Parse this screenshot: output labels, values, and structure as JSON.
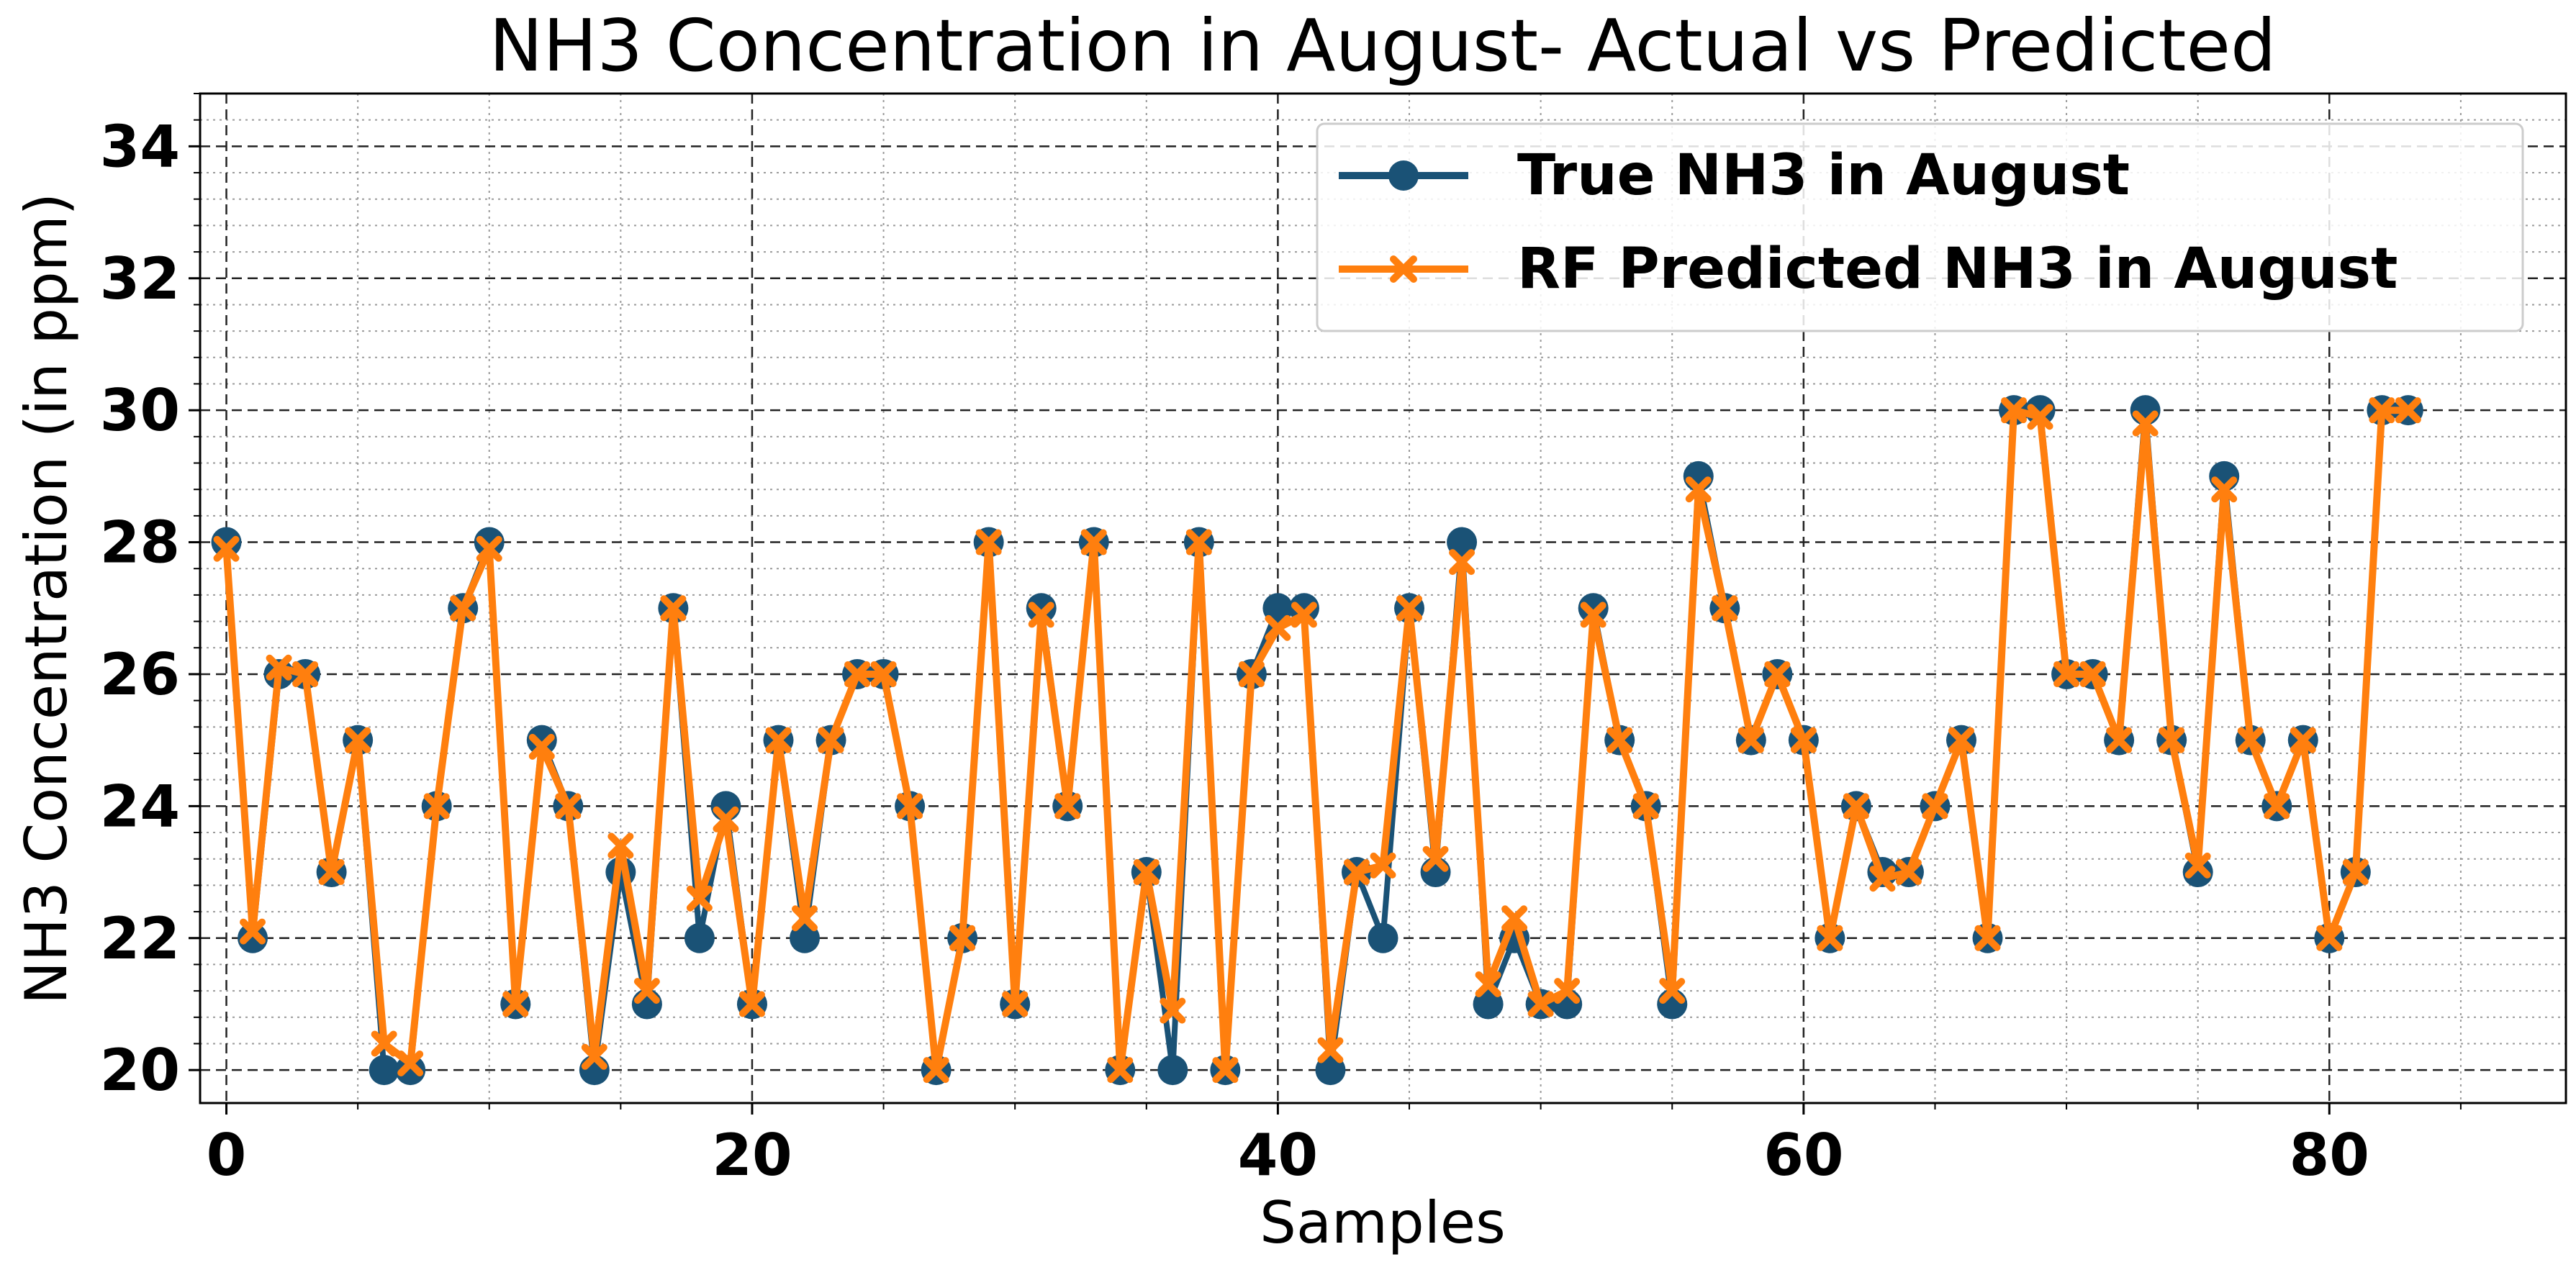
{
  "chart_data": {
    "type": "line",
    "title": "NH3 Concentration in August- Actual vs Predicted",
    "xlabel": "Samples",
    "ylabel": "NH3 Concentration (in ppm)",
    "xlim": [
      -1,
      89
    ],
    "ylim": [
      19.5,
      34.8
    ],
    "xticks": [
      0,
      20,
      40,
      60,
      80
    ],
    "yticks": [
      20,
      22,
      24,
      26,
      28,
      30,
      32,
      34
    ],
    "grid": true,
    "legend_position": "top-right",
    "series": [
      {
        "name": "True NH3 in August",
        "color": "#1a5276",
        "marker": "circle",
        "values": [
          28,
          22,
          26,
          26,
          23,
          25,
          20,
          20,
          24,
          27,
          28,
          21,
          25,
          24,
          20,
          23,
          21,
          27,
          22,
          24,
          21,
          25,
          22,
          25,
          26,
          26,
          24,
          20,
          22,
          28,
          21,
          27,
          24,
          28,
          20,
          23,
          20,
          28,
          20,
          26,
          27,
          27,
          20,
          23,
          22,
          27,
          23,
          28,
          21,
          22,
          21,
          21,
          27,
          25,
          24,
          21,
          29,
          27,
          25,
          26,
          25,
          22,
          24,
          23,
          23,
          24,
          25,
          22,
          30,
          30,
          26,
          26,
          25,
          30,
          25,
          23,
          29,
          25,
          24,
          25,
          22,
          23,
          30,
          30
        ]
      },
      {
        "name": "RF Predicted NH3 in August",
        "color": "#ff7f0e",
        "marker": "x",
        "values": [
          27.9,
          22.1,
          26.1,
          26.0,
          23.0,
          25.0,
          20.4,
          20.1,
          24.0,
          27.0,
          27.9,
          21.0,
          24.9,
          24.0,
          20.2,
          23.4,
          21.2,
          27.0,
          22.6,
          23.8,
          21.0,
          25.0,
          22.3,
          25.0,
          26.0,
          26.0,
          24.0,
          20.0,
          22.0,
          28.0,
          21.0,
          26.9,
          24.0,
          28.0,
          20.0,
          23.0,
          20.9,
          28.0,
          20.0,
          26.0,
          26.7,
          26.9,
          20.3,
          23.0,
          23.1,
          27.0,
          23.2,
          27.7,
          21.3,
          22.3,
          21.0,
          21.2,
          26.9,
          25.0,
          24.0,
          21.2,
          28.8,
          27.0,
          25.0,
          26.0,
          25.0,
          22.0,
          24.0,
          22.9,
          23.0,
          24.0,
          25.0,
          22.0,
          30.0,
          29.9,
          26.0,
          26.0,
          25.0,
          29.8,
          25.0,
          23.1,
          28.8,
          25.0,
          24.0,
          25.0,
          22.0,
          23.0,
          30.0,
          30.0
        ]
      }
    ]
  }
}
